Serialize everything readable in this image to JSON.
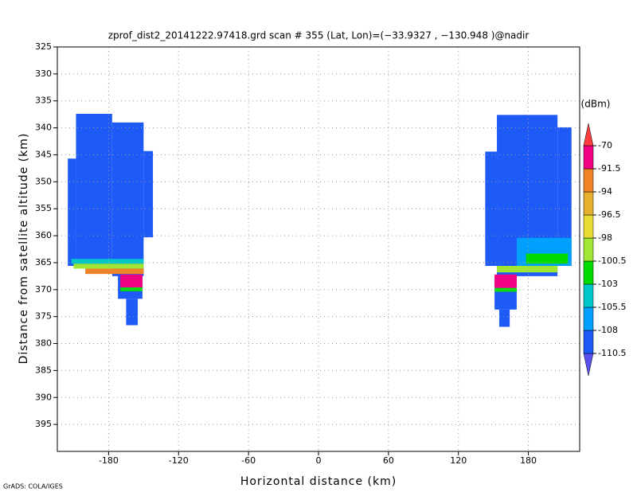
{
  "chart_data": {
    "type": "heatmap",
    "title": "zprof_dist2_20141222.97418.grd  scan # 355  (Lat, Lon)=(−33.9327 , −130.948 )@nadir",
    "x_label": "Horizontal distance (km)",
    "y_label": "Distance from satellite altitude (km)",
    "colorbar_label": "(dBm)",
    "credit": "GrADS: COLA/IGES",
    "xlim": [
      -224,
      224
    ],
    "xticks": [
      -180,
      -120,
      -60,
      0,
      60,
      120,
      180
    ],
    "ylim": [
      325,
      400
    ],
    "y_inverted": true,
    "yticks": [
      325,
      330,
      335,
      340,
      345,
      350,
      355,
      360,
      365,
      370,
      375,
      380,
      385,
      390,
      395
    ],
    "grid": true,
    "levels": [
      -110.5,
      -108,
      -105.5,
      -103,
      -100.5,
      -98,
      -96.5,
      -94,
      -91.5,
      -70
    ],
    "colors": [
      "#5a50f0",
      "#1e5af5",
      "#00a0ff",
      "#00c8c8",
      "#00dc00",
      "#a0e632",
      "#e6dc32",
      "#e6af2d",
      "#f08228",
      "#f00082",
      "#fa3c3c"
    ],
    "cells": [
      {
        "x": [
          -208,
          -177
        ],
        "y": [
          337.4,
          365.3
        ],
        "value": -109
      },
      {
        "x": [
          -177,
          -150
        ],
        "y": [
          339,
          367.5
        ],
        "value": -109
      },
      {
        "x": [
          -150,
          -142
        ],
        "y": [
          344.3,
          360.3
        ],
        "value": -109
      },
      {
        "x": [
          -215,
          -208
        ],
        "y": [
          345.7,
          365.6
        ],
        "value": -109
      },
      {
        "x": [
          -172,
          -151
        ],
        "y": [
          367,
          371.7
        ],
        "value": -109
      },
      {
        "x": [
          -165,
          -155
        ],
        "y": [
          371.7,
          376.6
        ],
        "value": -109
      },
      {
        "x": [
          -212,
          -150
        ],
        "y": [
          364.3,
          365.2
        ],
        "value": -104
      },
      {
        "x": [
          -210,
          -150
        ],
        "y": [
          365.2,
          366.1
        ],
        "value": -99
      },
      {
        "x": [
          -200,
          -150
        ],
        "y": [
          366.1,
          367.1
        ],
        "value": -93
      },
      {
        "x": [
          -170,
          -151
        ],
        "y": [
          367.2,
          369.6
        ],
        "value": -80
      },
      {
        "x": [
          -170,
          -151
        ],
        "y": [
          369.6,
          370.3
        ],
        "value": -102
      },
      {
        "x": [
          153,
          205
        ],
        "y": [
          337.6,
          367.5
        ],
        "value": -109
      },
      {
        "x": [
          143,
          153
        ],
        "y": [
          344.4,
          365.6
        ],
        "value": -109
      },
      {
        "x": [
          205,
          217
        ],
        "y": [
          339.9,
          365.6
        ],
        "value": -109
      },
      {
        "x": [
          151,
          170
        ],
        "y": [
          367.5,
          373.7
        ],
        "value": -109
      },
      {
        "x": [
          155,
          164
        ],
        "y": [
          373.7,
          376.9
        ],
        "value": -109
      },
      {
        "x": [
          170,
          217
        ],
        "y": [
          360.4,
          365.6
        ],
        "value": -106
      },
      {
        "x": [
          178,
          214
        ],
        "y": [
          363.3,
          365.2
        ],
        "value": -102
      },
      {
        "x": [
          153,
          205
        ],
        "y": [
          365.6,
          366.8
        ],
        "value": -99
      },
      {
        "x": [
          151,
          170
        ],
        "y": [
          367.2,
          369.7
        ],
        "value": -80
      },
      {
        "x": [
          151,
          170
        ],
        "y": [
          369.7,
          370.4
        ],
        "value": -102
      }
    ]
  }
}
